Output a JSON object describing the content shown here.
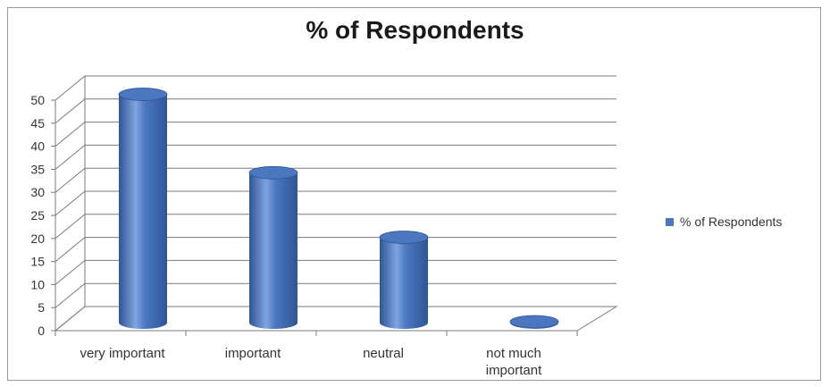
{
  "chart_data": {
    "type": "bar",
    "title": "% of Respondents",
    "categories": [
      "very important",
      "important",
      "neutral",
      "not much important"
    ],
    "category_lines": [
      [
        "very important"
      ],
      [
        "important"
      ],
      [
        "neutral"
      ],
      [
        "not much",
        "important"
      ]
    ],
    "series": [
      {
        "name": "% of Respondents",
        "values": [
          49.5,
          32.5,
          18.5,
          0.2
        ]
      }
    ],
    "yticks": [
      0,
      5,
      10,
      15,
      20,
      25,
      30,
      35,
      40,
      45,
      50
    ],
    "ylim": [
      0,
      50
    ],
    "xlabel": "",
    "ylabel": "",
    "grid": true,
    "legend_position": "right",
    "style": "3d-cylinder",
    "colors": {
      "bar": "#4a77c0",
      "bar_dark": "#2f5596",
      "bar_light": "#7fa4e0",
      "grid": "#7a7a7a"
    }
  }
}
